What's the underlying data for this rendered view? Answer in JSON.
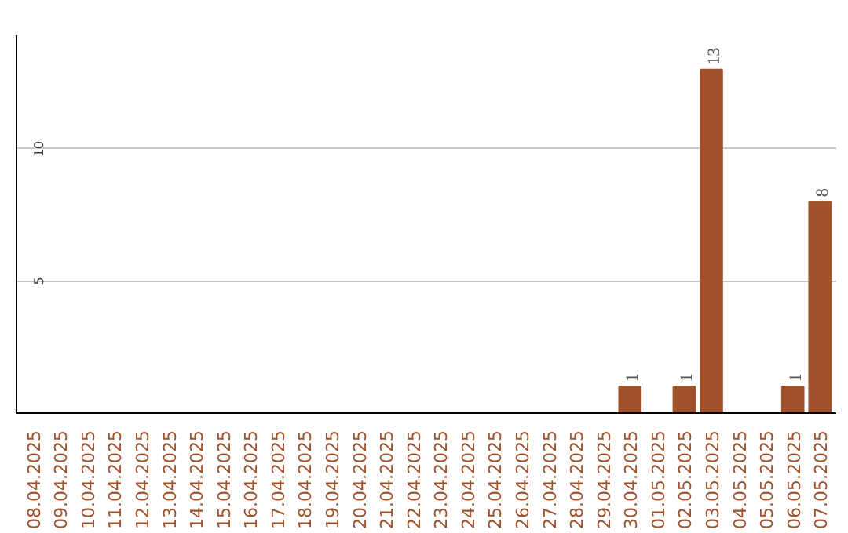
{
  "chart_data": {
    "type": "bar",
    "categories": [
      "08.04.2025",
      "09.04.2025",
      "10.04.2025",
      "11.04.2025",
      "12.04.2025",
      "13.04.2025",
      "14.04.2025",
      "15.04.2025",
      "16.04.2025",
      "17.04.2025",
      "18.04.2025",
      "19.04.2025",
      "20.04.2025",
      "21.04.2025",
      "22.04.2025",
      "23.04.2025",
      "24.04.2025",
      "25.04.2025",
      "26.04.2025",
      "27.04.2025",
      "28.04.2025",
      "29.04.2025",
      "30.04.2025",
      "01.05.2025",
      "02.05.2025",
      "03.05.2025",
      "04.05.2025",
      "05.05.2025",
      "06.05.2025",
      "07.05.2025"
    ],
    "values": [
      0,
      0,
      0,
      0,
      0,
      0,
      0,
      0,
      0,
      0,
      0,
      0,
      0,
      0,
      0,
      0,
      0,
      0,
      0,
      0,
      0,
      0,
      1,
      0,
      1,
      13,
      0,
      0,
      1,
      8
    ],
    "value_labels": [
      null,
      null,
      null,
      null,
      null,
      null,
      null,
      null,
      null,
      null,
      null,
      null,
      null,
      null,
      null,
      null,
      null,
      null,
      null,
      null,
      null,
      null,
      "1",
      null,
      "1",
      "13",
      null,
      null,
      "1",
      "8"
    ],
    "color": "#a0522d",
    "ylim": [
      0,
      14.3
    ],
    "yticks": [
      5,
      10
    ],
    "grid": "y"
  }
}
